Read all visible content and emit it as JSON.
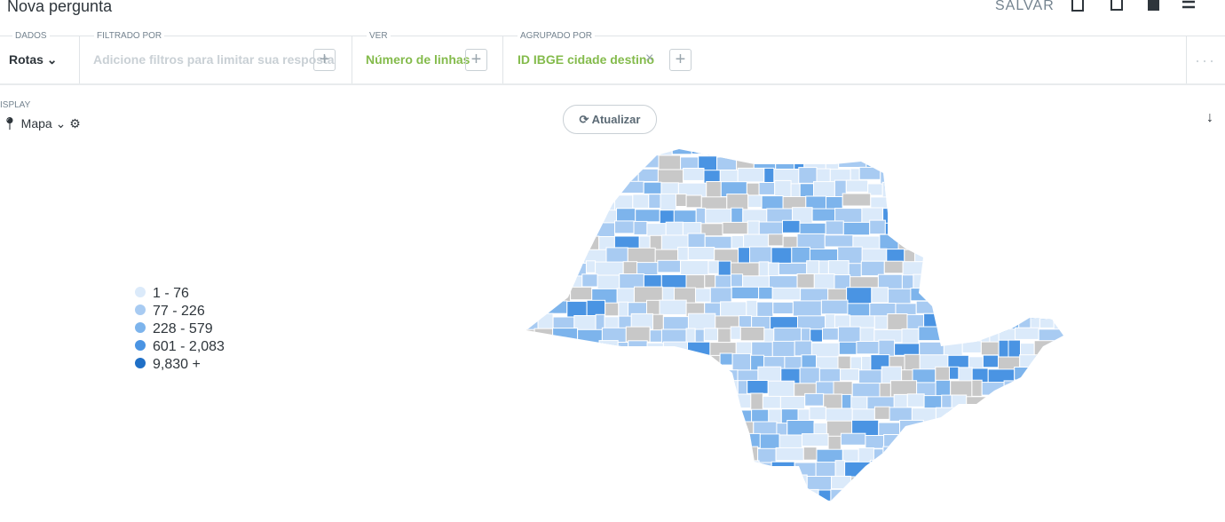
{
  "header": {
    "title": "Nova pergunta",
    "save": "SALVAR"
  },
  "query": {
    "data": {
      "label": "DADOS",
      "value": "Rotas"
    },
    "filter": {
      "label": "FILTRADO POR",
      "placeholder": "Adicione filtros para limitar sua resposta"
    },
    "view": {
      "label": "VER",
      "value": "Número de linhas"
    },
    "group": {
      "label": "AGRUPADO POR",
      "value": "ID IBGE cidade destino"
    }
  },
  "display": {
    "label": "ISPLAY",
    "value": "Mapa"
  },
  "refresh": "Atualizar",
  "legend": [
    {
      "label": "1 - 76",
      "color": "#dbeafa"
    },
    {
      "label": "77 - 226",
      "color": "#a8cbf2"
    },
    {
      "label": "228 - 579",
      "color": "#7db4ec"
    },
    {
      "label": "601 - 2,083",
      "color": "#4a94e3"
    },
    {
      "label": "9,830 +",
      "color": "#1f6fc6"
    }
  ]
}
